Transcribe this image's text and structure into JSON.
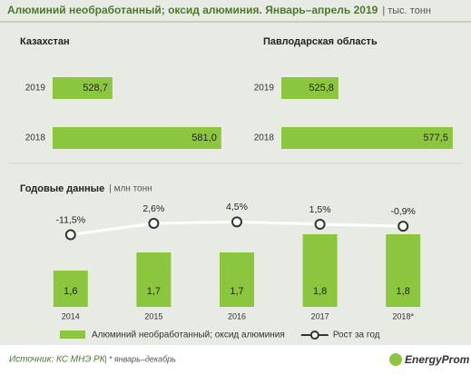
{
  "header": {
    "title": "Алюминий необработанный; оксид алюминия. Январь–апрель 2019",
    "unit": "| тыс. тонн"
  },
  "chart_data": [
    {
      "type": "hbar",
      "title": "Казахстан",
      "categories": [
        "2019",
        "2018"
      ],
      "values": [
        528.7,
        581.0
      ],
      "value_labels": [
        "528,7",
        "581,0"
      ],
      "xlim": [
        500,
        585
      ],
      "color": "#8cc63f"
    },
    {
      "type": "hbar",
      "title": "Павлодарская  область",
      "categories": [
        "2019",
        "2018"
      ],
      "values": [
        525.8,
        577.5
      ],
      "value_labels": [
        "525,8",
        "577,5"
      ],
      "xlim": [
        500,
        580
      ],
      "color": "#8cc63f"
    },
    {
      "type": "bar_line",
      "title": "Годовые данные",
      "unit": "| млн тонн",
      "categories": [
        "2014",
        "2015",
        "2016",
        "2017",
        "2018*"
      ],
      "ylim": [
        1.4,
        1.9
      ],
      "y2lim": [
        -30,
        15
      ],
      "series": [
        {
          "name": "Алюминий необработанный; оксид алюминия",
          "type": "bar",
          "color": "#8cc63f",
          "values": [
            1.6,
            1.7,
            1.7,
            1.8,
            1.8
          ],
          "value_labels": [
            "1,6",
            "1,7",
            "1,7",
            "1,8",
            "1,8"
          ]
        },
        {
          "name": "Рост за год",
          "type": "line",
          "axis": "y2",
          "color": "#ffffff",
          "values": [
            -11.5,
            2.6,
            4.5,
            1.5,
            -0.9
          ],
          "value_labels": [
            "-11,5%",
            "2,6%",
            "4,5%",
            "1,5%",
            "-0,9%"
          ]
        }
      ]
    }
  ],
  "footer": {
    "source": "Источник: КС МНЭ РК",
    "note": "| * январь–декабрь"
  },
  "logo": "EnergyProm"
}
